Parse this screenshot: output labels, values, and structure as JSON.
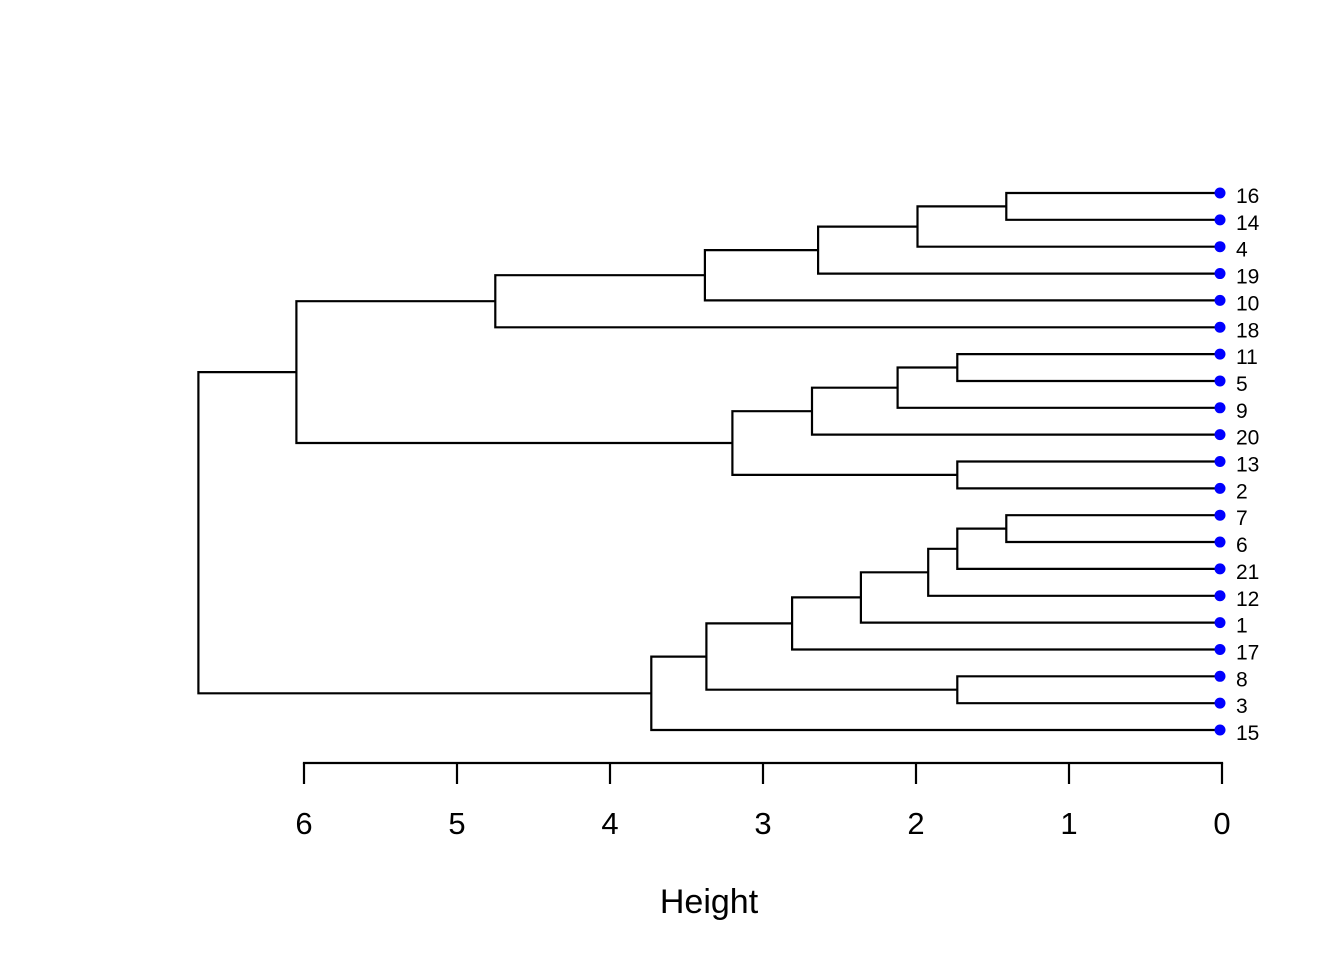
{
  "colors": {
    "background": "#ffffff",
    "branch_line": "#000000",
    "leaf_marker": "#0000ff",
    "text": "#000000"
  },
  "axis": {
    "label": "Height",
    "ticks": [
      "6",
      "5",
      "4",
      "3",
      "2",
      "1",
      "0"
    ]
  },
  "chart_data": {
    "type": "dendrogram",
    "orientation": "horizontal-leaves-right",
    "xlabel": "Height",
    "axis_tick_values": [
      6,
      5,
      4,
      3,
      2,
      1,
      0
    ],
    "axis_range_left_to_right": [
      6,
      0
    ],
    "grid": false,
    "leaf_count": 21,
    "leaf_order_top_to_bottom": [
      "16",
      "14",
      "4",
      "19",
      "10",
      "18",
      "11",
      "5",
      "9",
      "20",
      "13",
      "2",
      "7",
      "6",
      "21",
      "12",
      "1",
      "17",
      "8",
      "3",
      "15"
    ],
    "leaf_marker": "filled-circle",
    "leaf_marker_color": "#0000ff",
    "tree": {
      "h": 6.69,
      "children": [
        {
          "h": 6.05,
          "children": [
            {
              "h": 4.75,
              "children": [
                {
                  "h": 3.38,
                  "children": [
                    {
                      "h": 2.64,
                      "children": [
                        {
                          "h": 1.99,
                          "children": [
                            {
                              "h": 1.41,
                              "children": [
                                {
                                  "leaf": "16"
                                },
                                {
                                  "leaf": "14"
                                }
                              ]
                            },
                            {
                              "leaf": "4"
                            }
                          ]
                        },
                        {
                          "leaf": "19"
                        }
                      ]
                    },
                    {
                      "leaf": "10"
                    }
                  ]
                },
                {
                  "leaf": "18"
                }
              ]
            },
            {
              "h": 3.2,
              "children": [
                {
                  "h": 2.68,
                  "children": [
                    {
                      "h": 2.12,
                      "children": [
                        {
                          "h": 1.73,
                          "children": [
                            {
                              "leaf": "11"
                            },
                            {
                              "leaf": "5"
                            }
                          ]
                        },
                        {
                          "leaf": "9"
                        }
                      ]
                    },
                    {
                      "leaf": "20"
                    }
                  ]
                },
                {
                  "h": 1.73,
                  "children": [
                    {
                      "leaf": "13"
                    },
                    {
                      "leaf": "2"
                    }
                  ]
                }
              ]
            }
          ]
        },
        {
          "h": 3.73,
          "children": [
            {
              "h": 3.37,
              "children": [
                {
                  "h": 2.81,
                  "children": [
                    {
                      "h": 2.36,
                      "children": [
                        {
                          "h": 1.92,
                          "children": [
                            {
                              "h": 1.73,
                              "children": [
                                {
                                  "h": 1.41,
                                  "children": [
                                    {
                                      "leaf": "7"
                                    },
                                    {
                                      "leaf": "6"
                                    }
                                  ]
                                },
                                {
                                  "leaf": "21"
                                }
                              ]
                            },
                            {
                              "leaf": "12"
                            }
                          ]
                        },
                        {
                          "leaf": "1"
                        }
                      ]
                    },
                    {
                      "leaf": "17"
                    }
                  ]
                },
                {
                  "h": 1.73,
                  "children": [
                    {
                      "leaf": "8"
                    },
                    {
                      "leaf": "3"
                    }
                  ]
                }
              ]
            },
            {
              "leaf": "15"
            }
          ]
        }
      ]
    }
  }
}
